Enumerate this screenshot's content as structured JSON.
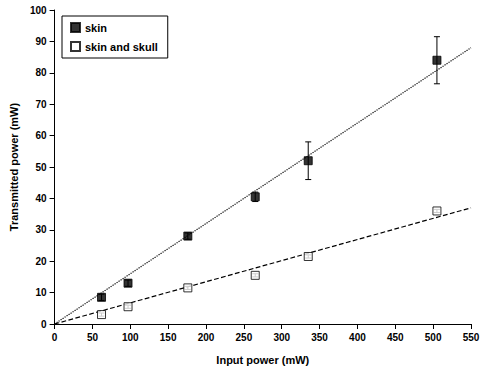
{
  "chart_data": {
    "type": "scatter",
    "x_label": "Input power (mW)",
    "y_label": "Transmitted power (mW)",
    "x": [
      62,
      97,
      176,
      265,
      335,
      505
    ],
    "series": [
      {
        "name": "skin",
        "color": "#000000",
        "marker": "square_filled",
        "line_style": "dotted",
        "values": [
          8.5,
          13,
          28,
          40.5,
          52,
          84
        ],
        "errors": [
          1,
          1,
          1,
          1.5,
          6,
          7.5
        ],
        "fit": {
          "x": [
            0,
            550
          ],
          "values": [
            0,
            88
          ]
        }
      },
      {
        "name": "skin and skull",
        "color": "#000000",
        "marker": "square_open",
        "line_style": "dashed",
        "values": [
          3,
          5.5,
          11.5,
          15.5,
          21.5,
          36
        ],
        "errors": [
          0.5,
          0.5,
          0.5,
          0.5,
          0.5,
          0.5
        ],
        "fit": {
          "x": [
            0,
            550
          ],
          "values": [
            0,
            37
          ]
        }
      }
    ],
    "xlim": [
      0,
      550
    ],
    "xticks": [
      0,
      50,
      100,
      150,
      200,
      250,
      300,
      350,
      400,
      450,
      500,
      550
    ],
    "ylim": [
      0,
      100
    ],
    "yticks": [
      0,
      10,
      20,
      30,
      40,
      50,
      60,
      70,
      80,
      90,
      100
    ],
    "grid": false,
    "legend": "top-left"
  }
}
